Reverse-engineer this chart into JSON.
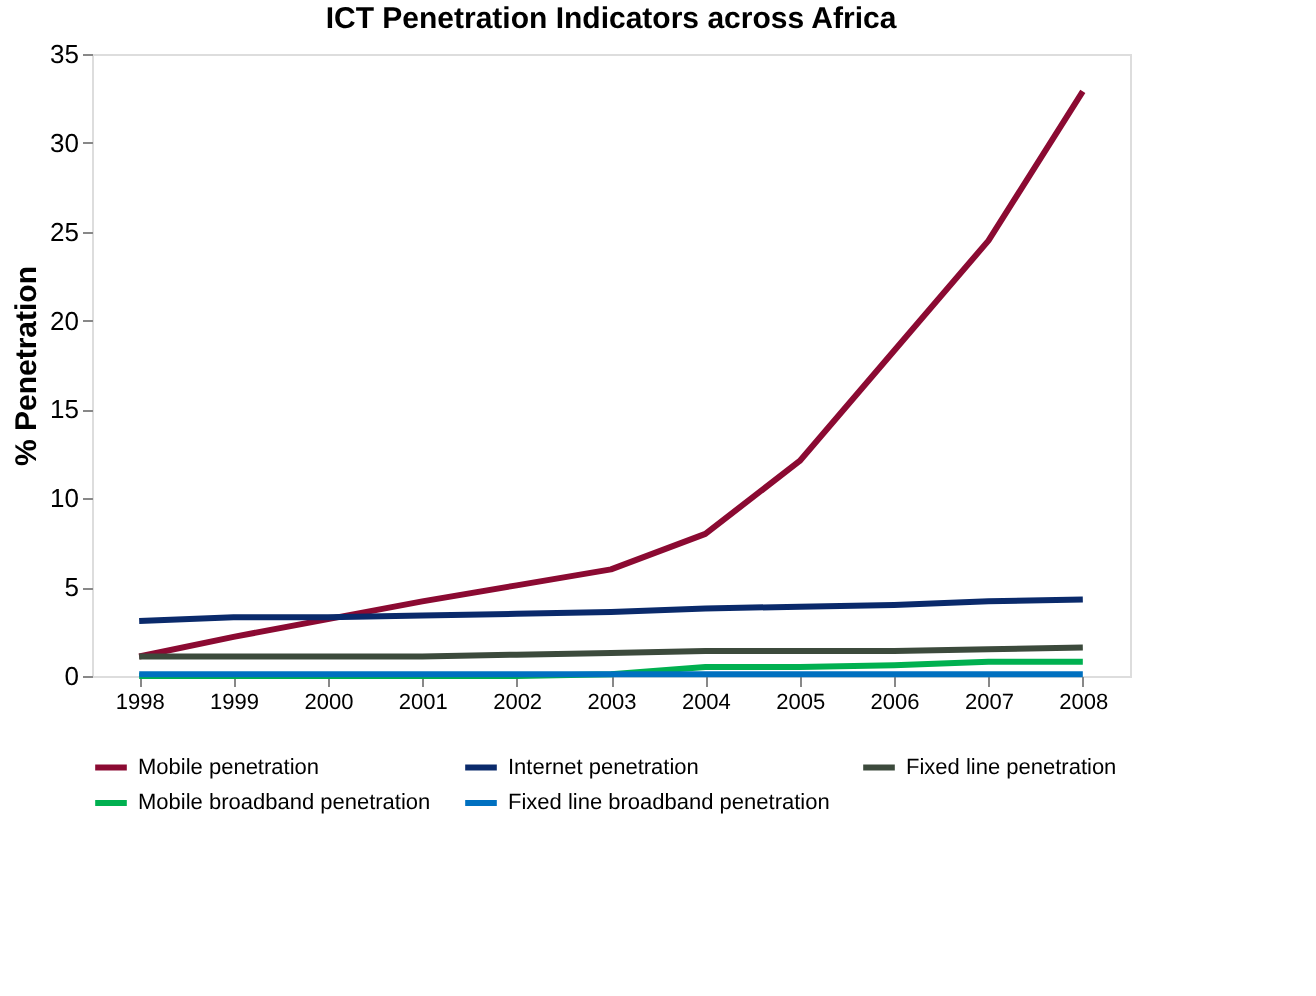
{
  "chart_data": {
    "type": "line",
    "title": "ICT Penetration Indicators across Africa",
    "ylabel": "% Penetration",
    "categories": [
      "1998",
      "1999",
      "2000",
      "2001",
      "2002",
      "2003",
      "2004",
      "2005",
      "2006",
      "2007",
      "2008"
    ],
    "series": [
      {
        "name": "Mobile penetration",
        "color": "#8b0a32",
        "values": [
          1.1,
          2.2,
          3.2,
          4.2,
          5.1,
          6.0,
          8.0,
          12.1,
          18.3,
          24.5,
          32.9
        ]
      },
      {
        "name": "Internet penetration",
        "color": "#0a2a6b",
        "values": [
          3.1,
          3.3,
          3.3,
          3.4,
          3.5,
          3.6,
          3.8,
          3.9,
          4.0,
          4.2,
          4.3
        ]
      },
      {
        "name": "Fixed line penetration",
        "color": "#3c4a3c",
        "values": [
          1.1,
          1.1,
          1.1,
          1.1,
          1.2,
          1.3,
          1.4,
          1.4,
          1.4,
          1.5,
          1.6
        ]
      },
      {
        "name": "Mobile broadband penetration",
        "color": "#00b050",
        "values": [
          0.0,
          0.0,
          0.0,
          0.0,
          0.0,
          0.1,
          0.5,
          0.5,
          0.6,
          0.8,
          0.8
        ]
      },
      {
        "name": "Fixed line broadband penetration",
        "color": "#0070c0",
        "values": [
          0.1,
          0.1,
          0.1,
          0.1,
          0.1,
          0.1,
          0.1,
          0.1,
          0.1,
          0.1,
          0.1
        ]
      }
    ],
    "ylim": [
      0,
      35
    ],
    "yticks": [
      0,
      5,
      10,
      15,
      20,
      25,
      30,
      35
    ],
    "grid": false,
    "legend": "bottom",
    "marker": "none",
    "line_style": "solid"
  }
}
